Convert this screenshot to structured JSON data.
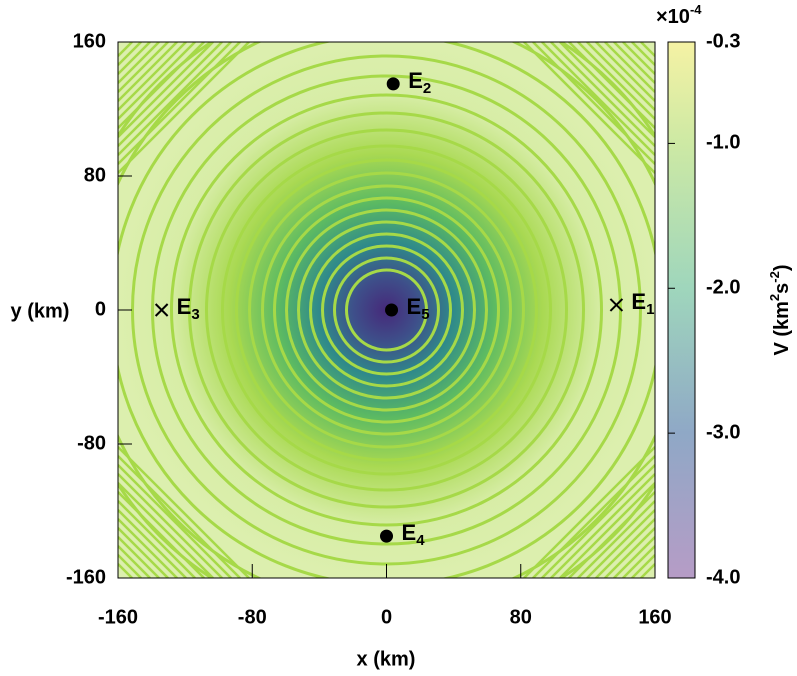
{
  "chart_data": {
    "type": "contour",
    "x_label": "x (km)",
    "y_label": "y (km)",
    "xlim": [
      -160,
      160
    ],
    "ylim": [
      -160,
      160
    ],
    "xticks": [
      -160,
      -80,
      0,
      80,
      160
    ],
    "yticks": [
      -160,
      -80,
      0,
      80,
      160
    ],
    "colorbar": {
      "label_parts": [
        {
          "text": "V (km",
          "sup": false
        },
        {
          "text": "2",
          "sup": true
        },
        {
          "text": "s",
          "sup": false
        },
        {
          "text": "-2",
          "sup": true
        },
        {
          "text": ")",
          "sup": false
        }
      ],
      "multiplier_base": "×10",
      "multiplier_exp": "-4",
      "lim": [
        -4.0,
        -0.3
      ],
      "ticks": [
        -0.3,
        {
          "value": -1,
          "label": "-1.0"
        },
        {
          "value": -2,
          "label": "-2.0"
        },
        {
          "value": -3,
          "label": "-3.0"
        },
        {
          "value": -4,
          "label": "-4.0"
        }
      ]
    },
    "points": [
      {
        "name": "E",
        "sub": "1",
        "x": 137,
        "y": 3,
        "marker": "x"
      },
      {
        "name": "E",
        "sub": "2",
        "x": 4,
        "y": 135,
        "marker": "dot"
      },
      {
        "name": "E",
        "sub": "3",
        "x": -134,
        "y": 0,
        "marker": "x"
      },
      {
        "name": "E",
        "sub": "4",
        "x": 0,
        "y": -135,
        "marker": "dot"
      },
      {
        "name": "E",
        "sub": "5",
        "x": 3,
        "y": 0,
        "marker": "dot"
      }
    ]
  }
}
